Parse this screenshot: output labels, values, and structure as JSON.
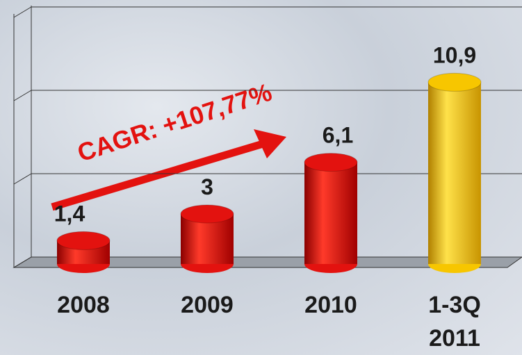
{
  "chart_data": {
    "type": "bar3d",
    "annotation": "CAGR: +107,77%",
    "categories": [
      "2008",
      "2009",
      "2010",
      "1-3Q\n2011"
    ],
    "values": [
      1.4,
      3,
      6.1,
      10.9
    ],
    "value_labels": [
      "1,4",
      "3",
      "6,1",
      "10,9"
    ],
    "colors": [
      "#e3120f",
      "#e3120f",
      "#e3120f",
      "#f7c600"
    ],
    "ylim": [
      0,
      15
    ],
    "yticks": [
      0,
      5,
      10,
      15
    ],
    "grid": true
  }
}
